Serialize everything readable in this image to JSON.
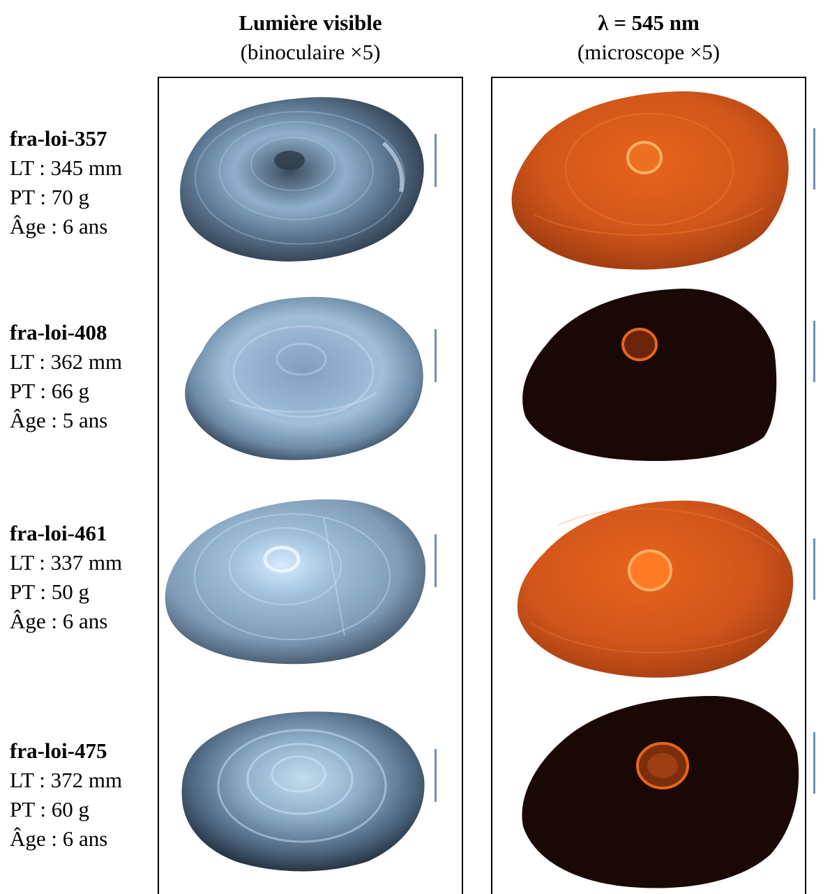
{
  "columns": [
    {
      "title": "Lumière visible",
      "subtitle": "(binoculaire ×5)"
    },
    {
      "title": "λ = 545 nm",
      "subtitle": "(microscope ×5)"
    }
  ],
  "specimens": [
    {
      "id": "fra-loi-357",
      "lt": "LT : 345 mm",
      "pt": "PT : 70 g",
      "age": "Âge : 6 ans",
      "fluorescence": "bright"
    },
    {
      "id": "fra-loi-408",
      "lt": "LT : 362 mm",
      "pt": "PT : 66 g",
      "age": "Âge : 5 ans",
      "fluorescence": "dark"
    },
    {
      "id": "fra-loi-461",
      "lt": "LT : 337 mm",
      "pt": "PT : 50 g",
      "age": "Âge : 6 ans",
      "fluorescence": "bright"
    },
    {
      "id": "fra-loi-475",
      "lt": "LT : 372 mm",
      "pt": "PT : 60 g",
      "age": "Âge : 6 ans",
      "fluorescence": "dark"
    }
  ],
  "colors": {
    "visible_light_tone": "#9fc0da",
    "visible_dark_tone": "#1e2a38",
    "fluor_bright_tone": "#e8641c",
    "fluor_dark_tone": "#1a0806",
    "fluor_core": "#ff8a2a",
    "scale_bar": "#6f8fb5"
  }
}
